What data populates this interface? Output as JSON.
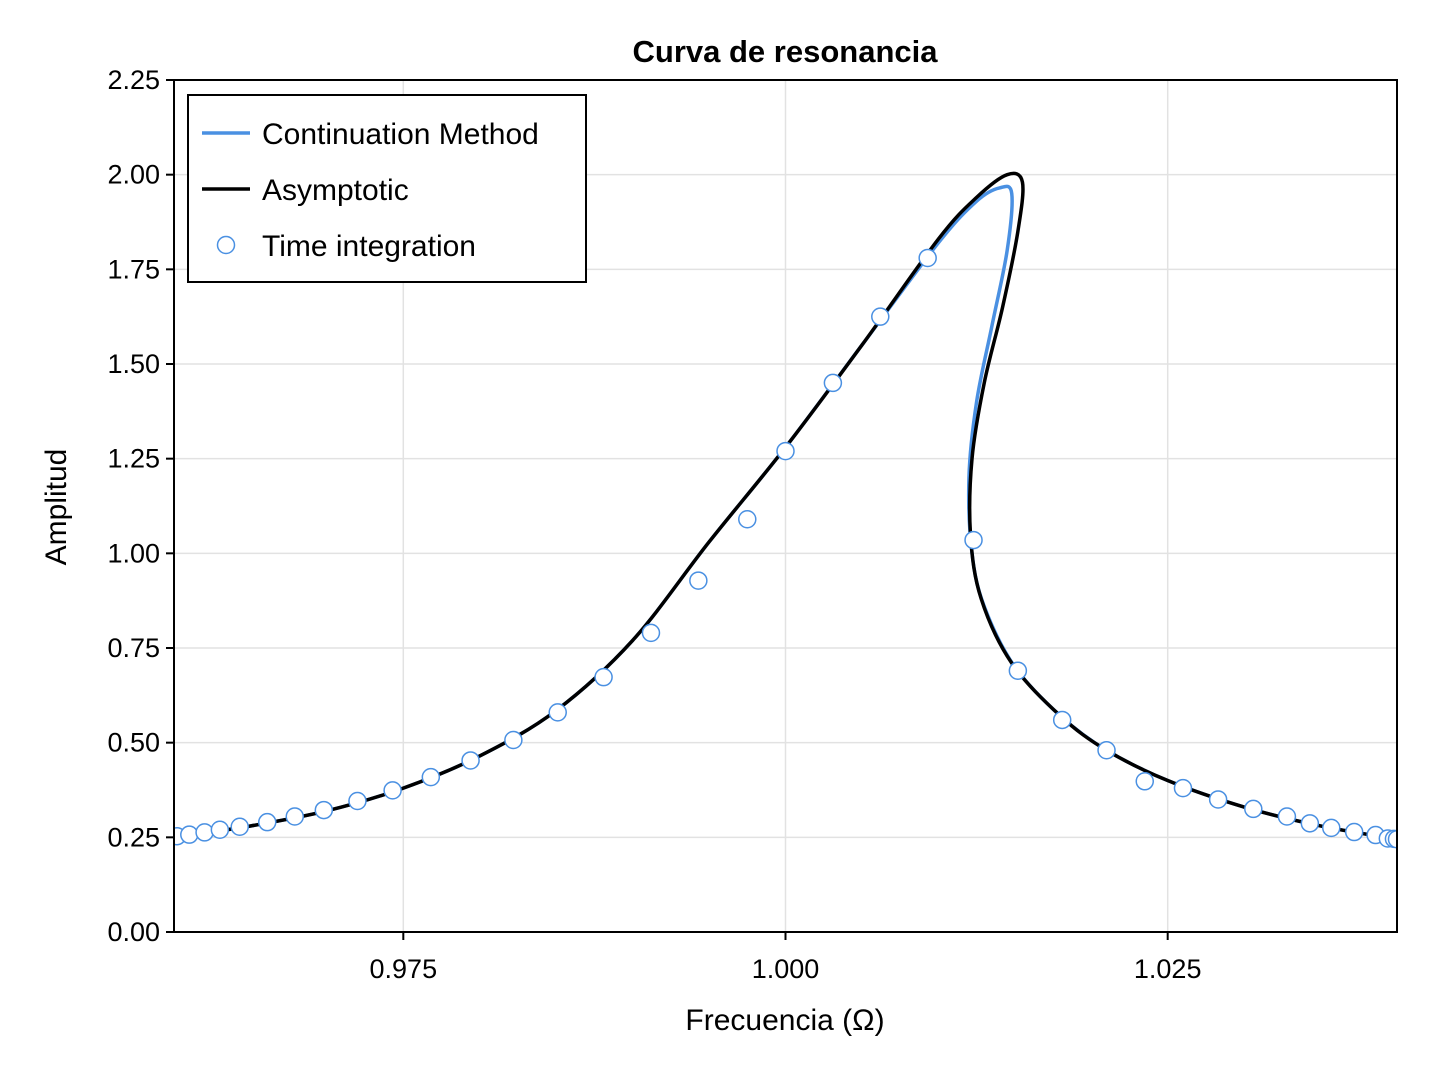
{
  "chart_data": {
    "type": "line",
    "title": "Curva de resonancia",
    "xlabel": "Frecuencia (Ω)",
    "ylabel": "Amplitud",
    "xlim": [
      0.96,
      1.04
    ],
    "ylim": [
      0,
      2.25
    ],
    "xticks": [
      0.975,
      1.0,
      1.025
    ],
    "xtick_labels": [
      "0.975",
      "1.000",
      "1.025"
    ],
    "yticks": [
      0,
      0.25,
      0.5,
      0.75,
      1.0,
      1.25,
      1.5,
      1.75,
      2.0,
      2.25
    ],
    "ytick_labels": [
      "0.00",
      "0.25",
      "0.50",
      "0.75",
      "1.00",
      "1.25",
      "1.50",
      "1.75",
      "2.00",
      "2.25"
    ],
    "grid": true,
    "legend_position": "top-left",
    "series": [
      {
        "name": "Continuation Method",
        "kind": "line",
        "color": "#4a90e2",
        "points": [
          [
            0.96,
            0.25
          ],
          [
            0.965,
            0.28
          ],
          [
            0.97,
            0.32
          ],
          [
            0.975,
            0.38
          ],
          [
            0.98,
            0.465
          ],
          [
            0.985,
            0.585
          ],
          [
            0.99,
            0.77
          ],
          [
            0.995,
            1.03
          ],
          [
            1.0,
            1.28
          ],
          [
            1.005,
            1.55
          ],
          [
            1.01,
            1.82
          ],
          [
            1.0125,
            1.93
          ],
          [
            1.014,
            1.965
          ],
          [
            1.0148,
            1.95
          ],
          [
            1.0145,
            1.8
          ],
          [
            1.0135,
            1.6
          ],
          [
            1.0125,
            1.4
          ],
          [
            1.012,
            1.2
          ],
          [
            1.0122,
            1.0
          ],
          [
            1.013,
            0.86
          ],
          [
            1.015,
            0.7
          ],
          [
            1.018,
            0.57
          ],
          [
            1.021,
            0.48
          ],
          [
            1.025,
            0.4
          ],
          [
            1.03,
            0.33
          ],
          [
            1.035,
            0.28
          ],
          [
            1.04,
            0.245
          ]
        ]
      },
      {
        "name": "Asymptotic",
        "kind": "line",
        "color": "#000000",
        "points": [
          [
            0.96,
            0.25
          ],
          [
            0.965,
            0.28
          ],
          [
            0.97,
            0.32
          ],
          [
            0.975,
            0.38
          ],
          [
            0.98,
            0.465
          ],
          [
            0.985,
            0.585
          ],
          [
            0.99,
            0.77
          ],
          [
            0.995,
            1.03
          ],
          [
            1.0,
            1.28
          ],
          [
            1.005,
            1.55
          ],
          [
            1.01,
            1.83
          ],
          [
            1.0125,
            1.94
          ],
          [
            1.0145,
            2.0
          ],
          [
            1.0155,
            1.98
          ],
          [
            1.0152,
            1.85
          ],
          [
            1.0142,
            1.65
          ],
          [
            1.013,
            1.45
          ],
          [
            1.0122,
            1.25
          ],
          [
            1.0121,
            1.05
          ],
          [
            1.0128,
            0.88
          ],
          [
            1.0148,
            0.71
          ],
          [
            1.018,
            0.57
          ],
          [
            1.021,
            0.48
          ],
          [
            1.025,
            0.4
          ],
          [
            1.03,
            0.33
          ],
          [
            1.035,
            0.28
          ],
          [
            1.04,
            0.245
          ]
        ]
      },
      {
        "name": "Time integration",
        "kind": "scatter",
        "color": "#4a90e2",
        "points": [
          [
            0.9602,
            0.253
          ],
          [
            0.961,
            0.257
          ],
          [
            0.962,
            0.263
          ],
          [
            0.963,
            0.27
          ],
          [
            0.9643,
            0.278
          ],
          [
            0.9661,
            0.29
          ],
          [
            0.9679,
            0.305
          ],
          [
            0.9698,
            0.322
          ],
          [
            0.972,
            0.346
          ],
          [
            0.9743,
            0.374
          ],
          [
            0.9768,
            0.409
          ],
          [
            0.9794,
            0.453
          ],
          [
            0.9822,
            0.507
          ],
          [
            0.9851,
            0.58
          ],
          [
            0.9881,
            0.673
          ],
          [
            0.9912,
            0.79
          ],
          [
            0.9943,
            0.928
          ],
          [
            0.9975,
            1.09
          ],
          [
            1.0,
            1.27
          ],
          [
            1.0031,
            1.45
          ],
          [
            1.0062,
            1.625
          ],
          [
            1.0093,
            1.78
          ],
          [
            1.0123,
            1.035
          ],
          [
            1.0152,
            0.69
          ],
          [
            1.0181,
            0.56
          ],
          [
            1.021,
            0.48
          ],
          [
            1.0235,
            0.398
          ],
          [
            1.026,
            0.38
          ],
          [
            1.0283,
            0.35
          ],
          [
            1.0306,
            0.325
          ],
          [
            1.0328,
            0.305
          ],
          [
            1.0343,
            0.287
          ],
          [
            1.0357,
            0.275
          ],
          [
            1.0372,
            0.264
          ],
          [
            1.0386,
            0.256
          ],
          [
            1.0394,
            0.247
          ],
          [
            1.0398,
            0.246
          ],
          [
            1.04,
            0.245
          ]
        ]
      }
    ]
  }
}
